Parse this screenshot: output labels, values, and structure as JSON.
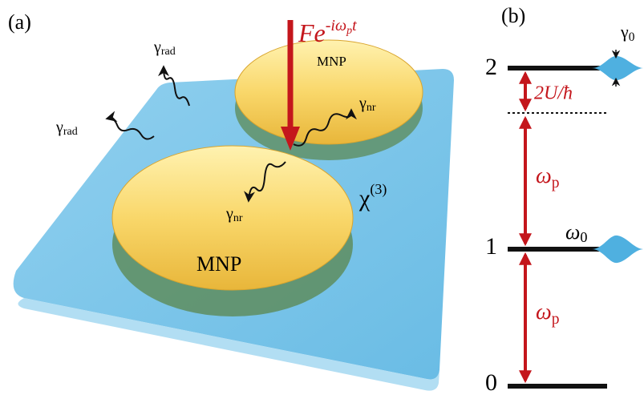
{
  "panel_a": {
    "label": "(a)",
    "drive": {
      "base": "Fe",
      "sup": "-iω",
      "sup_sub": "p",
      "sup_end": "t"
    },
    "gamma_rad": [
      {
        "base": "γ",
        "sub": "rad"
      },
      {
        "base": "γ",
        "sub": "rad"
      }
    ],
    "gamma_nr": [
      {
        "base": "γ",
        "sub": "nr"
      },
      {
        "base": "γ",
        "sub": "nr"
      }
    ],
    "mnp": [
      "MNP",
      "MNP"
    ],
    "chi": {
      "base": "χ",
      "sup": "(3)"
    }
  },
  "panel_b": {
    "label": "(b)",
    "levels": [
      "2",
      "1",
      "0"
    ],
    "gamma0": {
      "base": "γ",
      "sub": "0"
    },
    "shift": "2U/ħ",
    "omega_p": [
      {
        "base": "ω",
        "sub": "p"
      },
      {
        "base": "ω",
        "sub": "p"
      }
    ],
    "omega0": {
      "base": "ω",
      "sub": "0"
    }
  }
}
